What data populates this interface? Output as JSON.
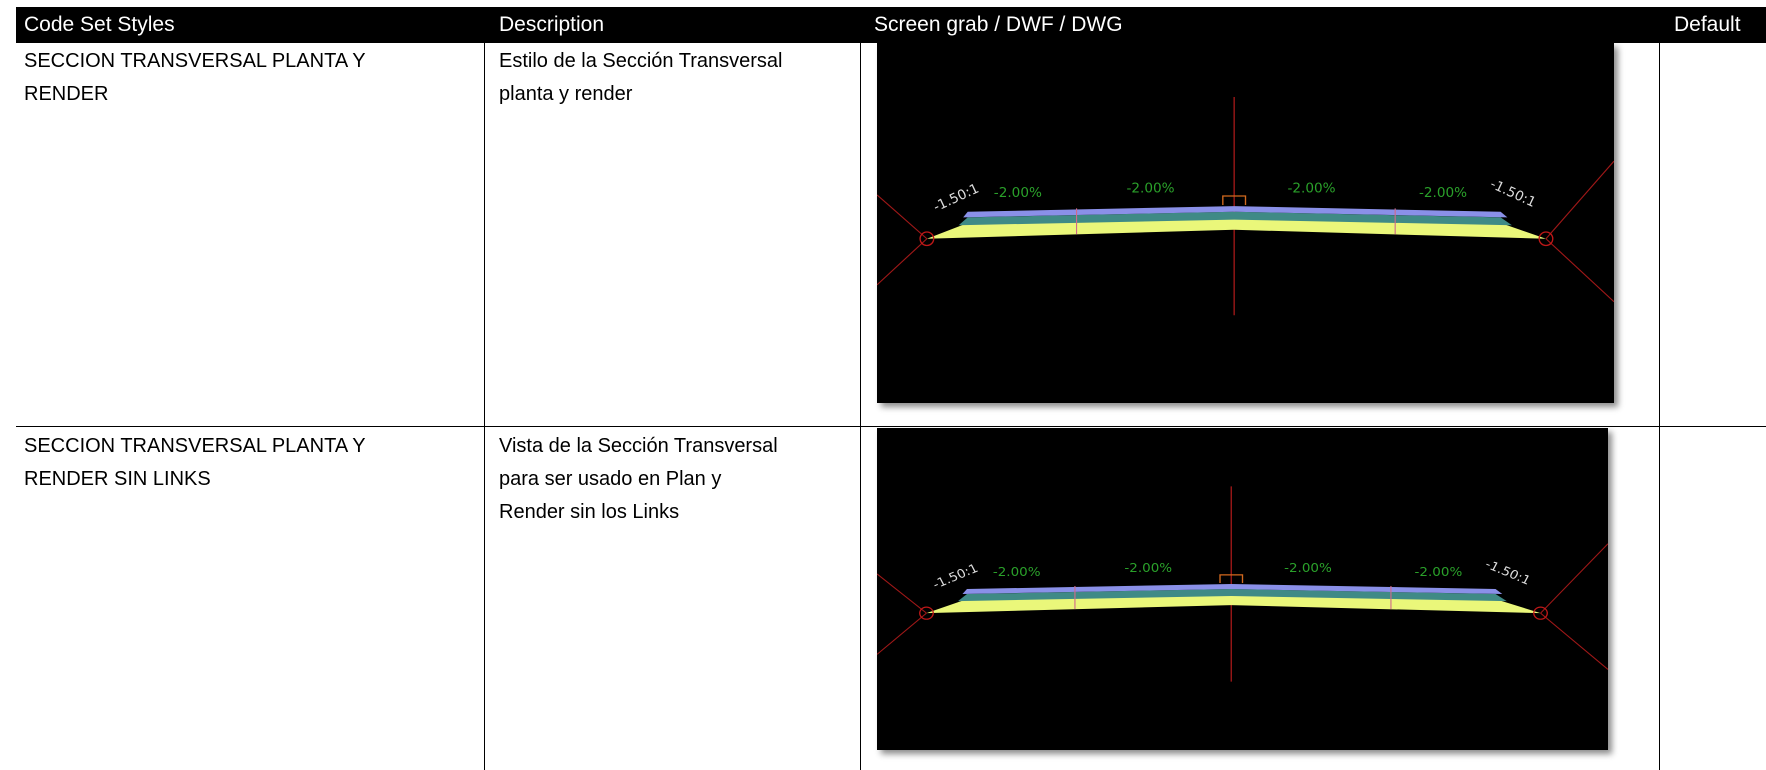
{
  "table": {
    "header": [
      "Code Set Styles",
      "Description",
      "Screen grab / DWF / DWG",
      "Default"
    ],
    "rows": [
      {
        "style": [
          "SECCION TRANSVERSAL PLANTA Y",
          "RENDER"
        ],
        "description": [
          "Estilo de la Sección Transversal",
          "planta y render"
        ],
        "image_labels": [
          "-1.50:1",
          "-2.00%",
          "-2.00%",
          "-2.00%",
          "-2.00%",
          "-1.50:1"
        ]
      },
      {
        "style": [
          "SECCION TRANSVERSAL PLANTA Y",
          "RENDER SIN LINKS"
        ],
        "description": [
          "Vista de la Sección Transversal",
          "para ser usado en Plan y",
          "Render sin los Links"
        ],
        "image_labels": [
          "-1.50:1",
          "-2.00%",
          "-2.00%",
          "-2.00%",
          "-2.00%",
          "-1.50:1"
        ]
      }
    ]
  }
}
